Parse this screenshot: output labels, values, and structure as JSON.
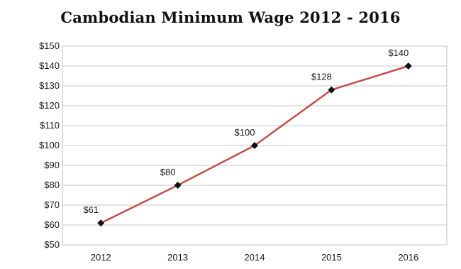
{
  "chart_data": {
    "type": "line",
    "title": "Cambodian Minimum Wage 2012 - 2016",
    "xlabel": "",
    "ylabel": "",
    "categories": [
      "2012",
      "2013",
      "2014",
      "2015",
      "2016"
    ],
    "series": [
      {
        "values": [
          61,
          80,
          100,
          128,
          140
        ],
        "data_labels": [
          "$61",
          "$80",
          "$100",
          "$128",
          "$140"
        ],
        "color": "#c0504d",
        "marker": "diamond",
        "marker_color": "#111111"
      }
    ],
    "ylim": [
      50,
      150
    ],
    "y_step": 10,
    "y_tick_labels": [
      "$50",
      "$60",
      "$70",
      "$80",
      "$90",
      "$100",
      "$110",
      "$120",
      "$130",
      "$140",
      "$150"
    ],
    "grid": "horizontal",
    "legend": "none",
    "colors": {
      "gridline": "#c8c8c8",
      "axis_border": "#bdbdbd"
    }
  }
}
